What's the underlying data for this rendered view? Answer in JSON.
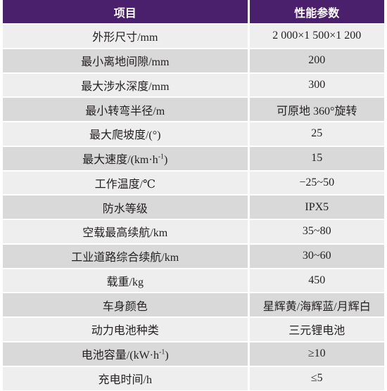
{
  "table": {
    "header": {
      "item": "项目",
      "value": "性能参数"
    },
    "rows": [
      {
        "item": "外形尺寸/mm",
        "value": "2 000×1 500×1 200"
      },
      {
        "item": "最小离地间隙/mm",
        "value": "200"
      },
      {
        "item": "最大涉水深度/mm",
        "value": "300"
      },
      {
        "item": "最小转弯半径/m",
        "value": "可原地 360°旋转"
      },
      {
        "item": "最大爬坡度/(°)",
        "value": "25"
      },
      {
        "item_pre": "最大速度/(km·h",
        "item_sup": "-1",
        "item_post": ")",
        "value": "15"
      },
      {
        "item": "工作温度/℃",
        "value": "−25~50"
      },
      {
        "item": "防水等级",
        "value": "IPX5"
      },
      {
        "item": "空载最高续航/km",
        "value": "35~80"
      },
      {
        "item": "工业道路综合续航/km",
        "value": "30~60"
      },
      {
        "item": "载重/kg",
        "value": "450"
      },
      {
        "item": "车身颜色",
        "value": "星辉黄/海辉蓝/月辉白"
      },
      {
        "item": "动力电池种类",
        "value": "三元锂电池"
      },
      {
        "item_pre": "电池容量/(kW·h",
        "item_sup": "-1",
        "item_post": ")",
        "value": "≥10"
      },
      {
        "item": "充电时间/h",
        "value": "≤5"
      }
    ]
  }
}
